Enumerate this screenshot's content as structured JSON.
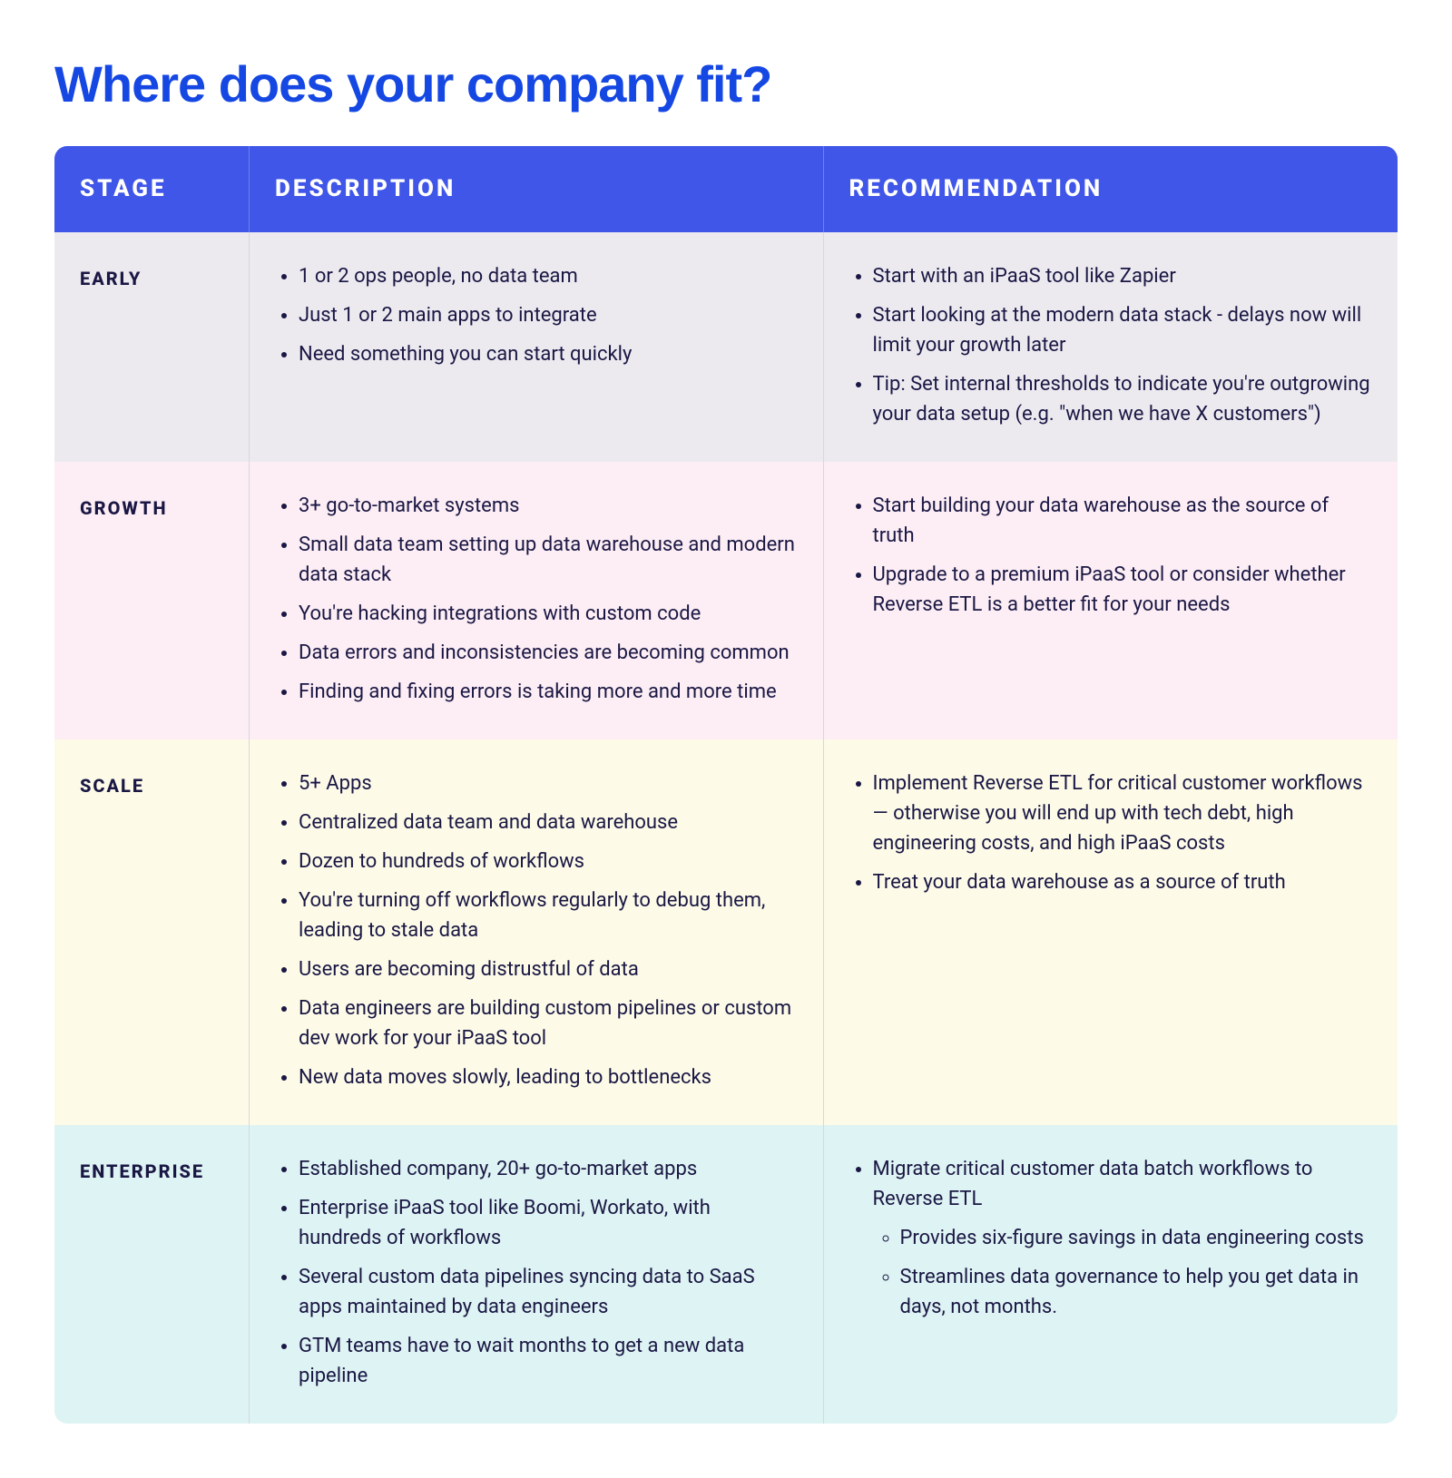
{
  "title": "Where does your company fit?",
  "columns": [
    "STAGE",
    "DESCRIPTION",
    "RECOMMENDATION"
  ],
  "row_backgrounds": [
    "#eceaef",
    "#fceef4",
    "#fdfbe8",
    "#def3f3"
  ],
  "header_bg": "#4056e8",
  "header_fg": "#ffffff",
  "title_color": "#1547e3",
  "text_color": "#1a1744",
  "border_color": "#d8d6df",
  "rows": [
    {
      "stage": "EARLY",
      "description": [
        "1 or 2 ops people, no data team",
        "Just 1 or 2 main apps to integrate",
        "Need something you can start quickly"
      ],
      "recommendation": [
        "Start with an iPaaS tool like Zapier",
        "Start looking at the modern data stack - delays now will limit your growth later",
        "Tip: Set internal thresholds to indicate you're outgrowing your data setup (e.g. \"when we have X customers\")"
      ]
    },
    {
      "stage": "GROWTH",
      "description": [
        "3+ go-to-market systems",
        "Small data team setting up data warehouse and modern data stack",
        "You're hacking integrations with custom code",
        "Data errors and inconsistencies are becoming common",
        "Finding and fixing errors is taking more and more time"
      ],
      "recommendation": [
        "Start building your data warehouse as the source of truth",
        "Upgrade to a premium iPaaS tool or consider whether Reverse ETL is a better fit for your needs"
      ]
    },
    {
      "stage": "SCALE",
      "description": [
        "5+ Apps",
        "Centralized data team and data warehouse",
        "Dozen to hundreds of workflows",
        "You're turning off workflows regularly to debug them, leading to stale data",
        "Users are becoming distrustful of data",
        "Data engineers are building custom pipelines or custom dev work for your iPaaS tool",
        "New data moves slowly, leading to bottlenecks"
      ],
      "recommendation": [
        "Implement Reverse ETL for critical customer workflows — otherwise you will end up with tech debt, high engineering costs, and high iPaaS costs",
        "Treat your data warehouse as a source of truth"
      ]
    },
    {
      "stage": "ENTERPRISE",
      "description": [
        "Established company, 20+ go-to-market apps",
        "Enterprise iPaaS tool like Boomi, Workato, with hundreds of workflows",
        "Several custom data pipelines syncing data to SaaS apps maintained by data engineers",
        "GTM teams have to wait months to get a new data pipeline"
      ],
      "recommendation": [
        {
          "text": "Migrate critical customer data batch workflows to Reverse ETL",
          "sub": [
            "Provides six-figure savings in data engineering costs",
            "Streamlines data governance to help you get data in days, not months."
          ]
        }
      ]
    }
  ]
}
